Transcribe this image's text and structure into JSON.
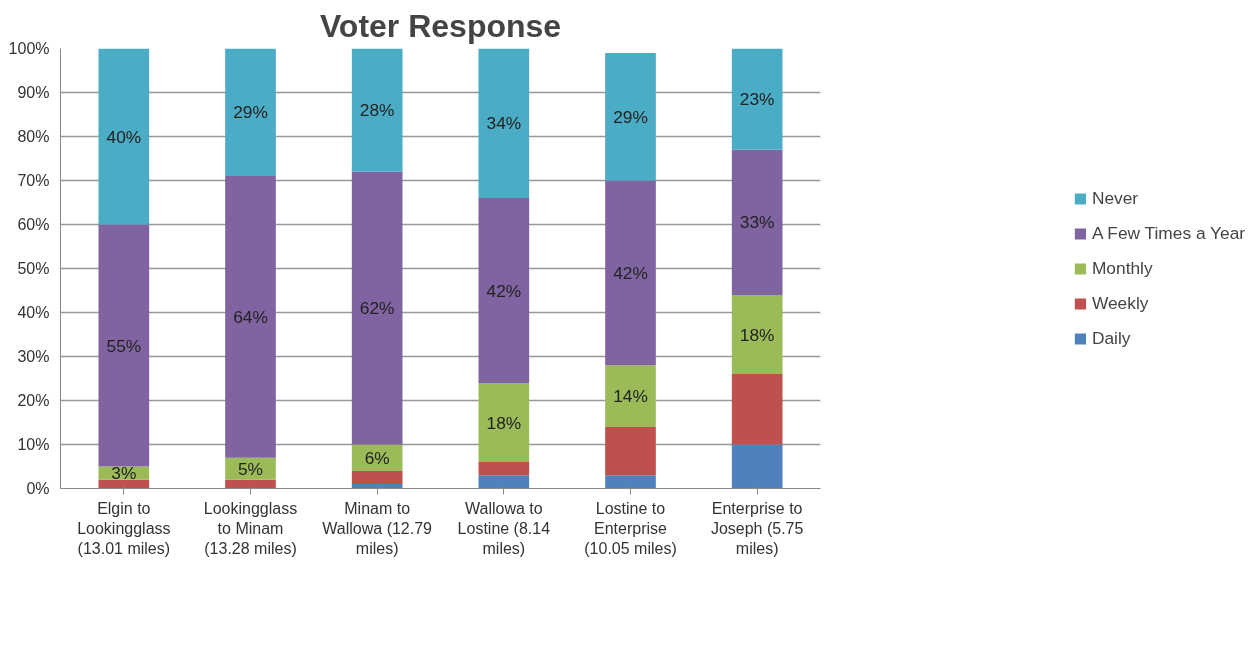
{
  "chart_data": {
    "type": "bar",
    "title": "Voter Response",
    "stacked": true,
    "categories": [
      "Elgin to Lookingglass (13.01 miles)",
      "Lookingglass to Minam (13.28 miles)",
      "Minam to Wallowa (12.79 miles)",
      "Wallowa to Lostine (8.14 miles)",
      "Lostine to Enterprise (10.05 miles)",
      "Enterprise to Joseph (5.75 miles)"
    ],
    "series": [
      {
        "name": "Daily",
        "color": "#4f81bd",
        "values": [
          0,
          0,
          1,
          3,
          3,
          10
        ]
      },
      {
        "name": "Weekly",
        "color": "#c0504d",
        "values": [
          2,
          2,
          3,
          3,
          11,
          16
        ]
      },
      {
        "name": "Monthly",
        "color": "#9bbb59",
        "values": [
          3,
          5,
          6,
          18,
          14,
          18
        ],
        "value_labels": [
          "3%",
          "5%",
          "6%",
          "18%",
          "14%",
          "18%"
        ]
      },
      {
        "name": "A Few Times a Year",
        "color": "#8064a2",
        "values": [
          55,
          64,
          62,
          42,
          42,
          33
        ],
        "value_labels": [
          "55%",
          "64%",
          "62%",
          "42%",
          "42%",
          "33%"
        ]
      },
      {
        "name": "Never",
        "color": "#4bacc6",
        "values": [
          40,
          29,
          28,
          34,
          29,
          23
        ],
        "value_labels": [
          "40%",
          "29%",
          "28%",
          "34%",
          "29%",
          "23%"
        ]
      }
    ],
    "ylim": [
      0,
      100
    ],
    "yticks": [
      {
        "value": 0,
        "label": "0%"
      },
      {
        "value": 10,
        "label": "10%"
      },
      {
        "value": 20,
        "label": "20%"
      },
      {
        "value": 30,
        "label": "30%"
      },
      {
        "value": 40,
        "label": "40%"
      },
      {
        "value": 50,
        "label": "50%"
      },
      {
        "value": 60,
        "label": "60%"
      },
      {
        "value": 70,
        "label": "70%"
      },
      {
        "value": 80,
        "label": "80%"
      },
      {
        "value": 90,
        "label": "90%"
      },
      {
        "value": 100,
        "label": "100%"
      }
    ],
    "grid": "y",
    "legend": "right"
  }
}
